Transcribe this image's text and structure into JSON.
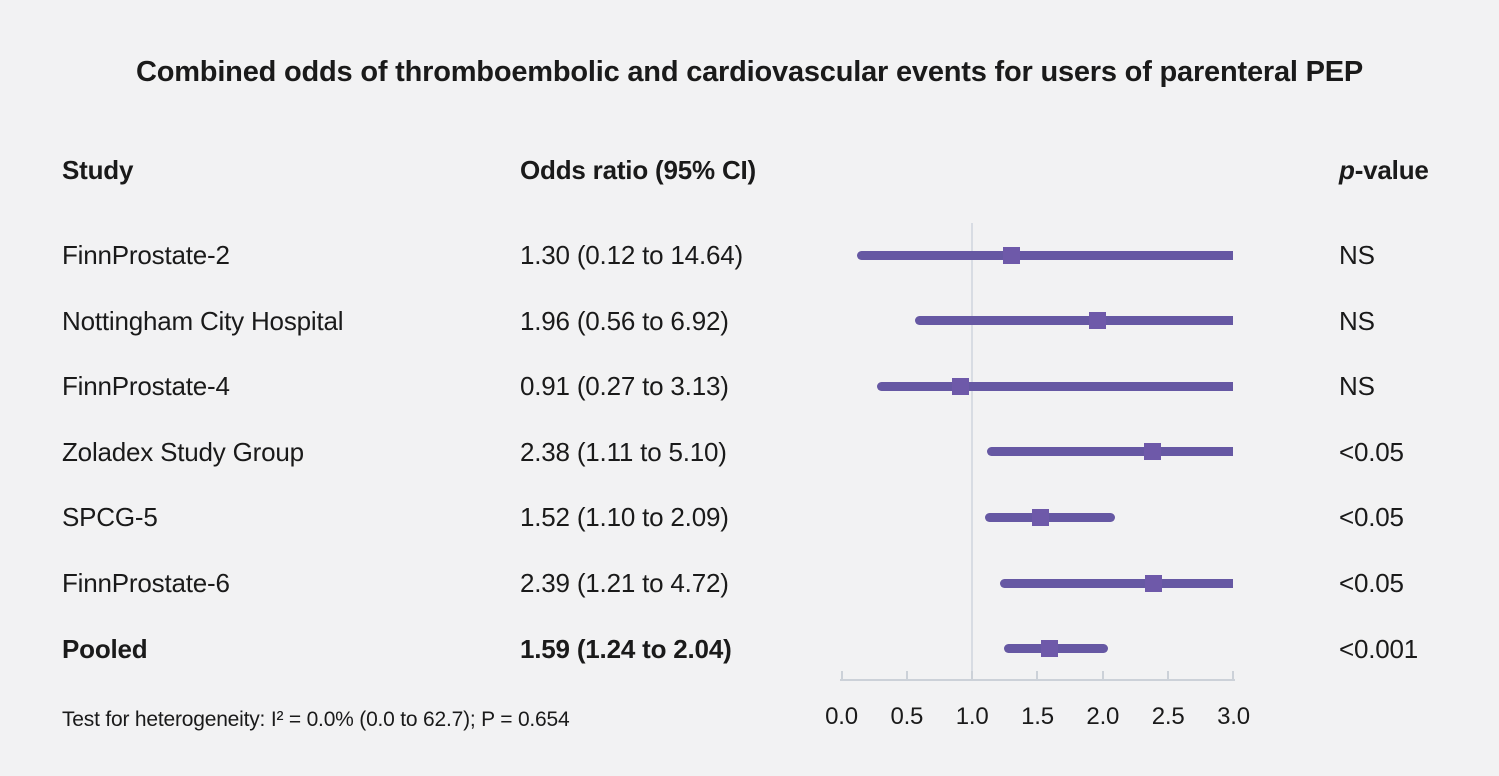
{
  "title": "Combined odds of thromboembolic and cardiovascular events for users of parenteral PEP",
  "columns": {
    "study": "Study",
    "odds_ratio": "Odds ratio (95% CI)",
    "p_value": {
      "italic": "p",
      "rest": "-value"
    }
  },
  "footer": "Test for heterogeneity: I² = 0.0% (0.0 to 62.7); P = 0.654",
  "chart_data": {
    "type": "scatter",
    "subtype": "forest-plot",
    "title": "Combined odds of thromboembolic and cardiovascular events for users of parenteral PEP",
    "x_axis": {
      "range": [
        0.0,
        3.0
      ],
      "ticks": [
        0.0,
        0.5,
        1.0,
        1.5,
        2.0,
        2.5,
        3.0
      ],
      "tick_labels": [
        "0.0",
        "0.5",
        "1.0",
        "1.5",
        "2.0",
        "2.5",
        "3.0"
      ],
      "reference_line": 1.0
    },
    "rows": [
      {
        "study": "FinnProstate-2",
        "or": 1.3,
        "ci_low": 0.12,
        "ci_high": 14.64,
        "or_label": "1.30 (0.12 to 14.64)",
        "p": "NS",
        "bold": false
      },
      {
        "study": "Nottingham City Hospital",
        "or": 1.96,
        "ci_low": 0.56,
        "ci_high": 6.92,
        "or_label": "1.96 (0.56 to 6.92)",
        "p": "NS",
        "bold": false
      },
      {
        "study": "FinnProstate-4",
        "or": 0.91,
        "ci_low": 0.27,
        "ci_high": 3.13,
        "or_label": "0.91 (0.27 to 3.13)",
        "p": "NS",
        "bold": false
      },
      {
        "study": "Zoladex Study Group",
        "or": 2.38,
        "ci_low": 1.11,
        "ci_high": 5.1,
        "or_label": "2.38 (1.11 to 5.10)",
        "p": "<0.05",
        "bold": false
      },
      {
        "study": "SPCG-5",
        "or": 1.52,
        "ci_low": 1.1,
        "ci_high": 2.09,
        "or_label": "1.52 (1.10 to 2.09)",
        "p": "<0.05",
        "bold": false
      },
      {
        "study": "FinnProstate-6",
        "or": 2.39,
        "ci_low": 1.21,
        "ci_high": 4.72,
        "or_label": "2.39 (1.21 to 4.72)",
        "p": "<0.05",
        "bold": false
      },
      {
        "study": "Pooled",
        "or": 1.59,
        "ci_low": 1.24,
        "ci_high": 2.04,
        "or_label": "1.59 (1.24 to 2.04)",
        "p": "<0.001",
        "bold": true
      }
    ],
    "heterogeneity": "Test for heterogeneity: I² = 0.0% (0.0 to 62.7); P = 0.654",
    "colors": {
      "ci_line": "#6658a3",
      "marker": "#6e59a9",
      "reference_line": "#d8dce3",
      "axis": "#ccd1d8",
      "text": "#1a1a1a",
      "background": "#f2f2f3"
    }
  }
}
